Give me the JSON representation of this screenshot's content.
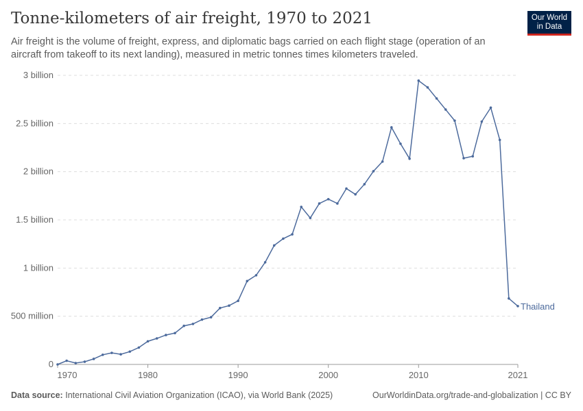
{
  "header": {
    "title": "Tonne-kilometers of air freight, 1970 to 2021",
    "subtitle": "Air freight is the volume of freight, express, and diplomatic bags carried on each flight stage (operation of an aircraft from takeoff to its next landing), measured in metric tonnes times kilometers traveled.",
    "logo": "Our World in Data"
  },
  "footer": {
    "source_label": "Data source:",
    "source": "International Civil Aviation Organization (ICAO), via World Bank (2025)",
    "link": "OurWorldinData.org/trade-and-globalization | CC BY"
  },
  "chart_data": {
    "type": "line",
    "title": "Tonne-kilometers of air freight, 1970 to 2021",
    "xlim": [
      1970,
      2021
    ],
    "ylim": [
      0,
      3000000000
    ],
    "grid": "horizontal dashed",
    "x_ticks": [
      1970,
      1980,
      1990,
      2000,
      2010,
      2021
    ],
    "y_ticks": [
      {
        "v": 0,
        "label": "0"
      },
      {
        "v": 500000000,
        "label": "500 million"
      },
      {
        "v": 1000000000,
        "label": "1 billion"
      },
      {
        "v": 1500000000,
        "label": "1.5 billion"
      },
      {
        "v": 2000000000,
        "label": "2 billion"
      },
      {
        "v": 2500000000,
        "label": "2.5 billion"
      },
      {
        "v": 3000000000,
        "label": "3 billion"
      }
    ],
    "color": "#4c6a9c",
    "series": [
      {
        "name": "Thailand",
        "x": [
          1970,
          1971,
          1972,
          1973,
          1974,
          1975,
          1976,
          1977,
          1978,
          1979,
          1980,
          1981,
          1982,
          1983,
          1984,
          1985,
          1986,
          1987,
          1988,
          1989,
          1990,
          1991,
          1992,
          1993,
          1994,
          1995,
          1996,
          1997,
          1998,
          1999,
          2000,
          2001,
          2002,
          2003,
          2004,
          2005,
          2006,
          2007,
          2008,
          2009,
          2010,
          2011,
          2012,
          2013,
          2014,
          2015,
          2016,
          2017,
          2018,
          2019,
          2020,
          2021
        ],
        "values": [
          0,
          38000000.0,
          14000000.0,
          28000000.0,
          57000000.0,
          100000000.0,
          120000000.0,
          105000000.0,
          133000000.0,
          175000000.0,
          240000000.0,
          270000000.0,
          305000000.0,
          325000000.0,
          400000000.0,
          420000000.0,
          465000000.0,
          490000000.0,
          585000000.0,
          610000000.0,
          660000000.0,
          865000000.0,
          925000000.0,
          1060000000.0,
          1235000000.0,
          1305000000.0,
          1350000000.0,
          1635000000.0,
          1520000000.0,
          1670000000.0,
          1715000000.0,
          1670000000.0,
          1825000000.0,
          1765000000.0,
          1870000000.0,
          2005000000.0,
          2105000000.0,
          2460000000.0,
          2290000000.0,
          2135000000.0,
          2945000000.0,
          2875000000.0,
          2760000000.0,
          2645000000.0,
          2530000000.0,
          2140000000.0,
          2160000000.0,
          2520000000.0,
          2665000000.0,
          2330000000.0,
          685000000.0,
          605000000.0
        ]
      }
    ]
  }
}
